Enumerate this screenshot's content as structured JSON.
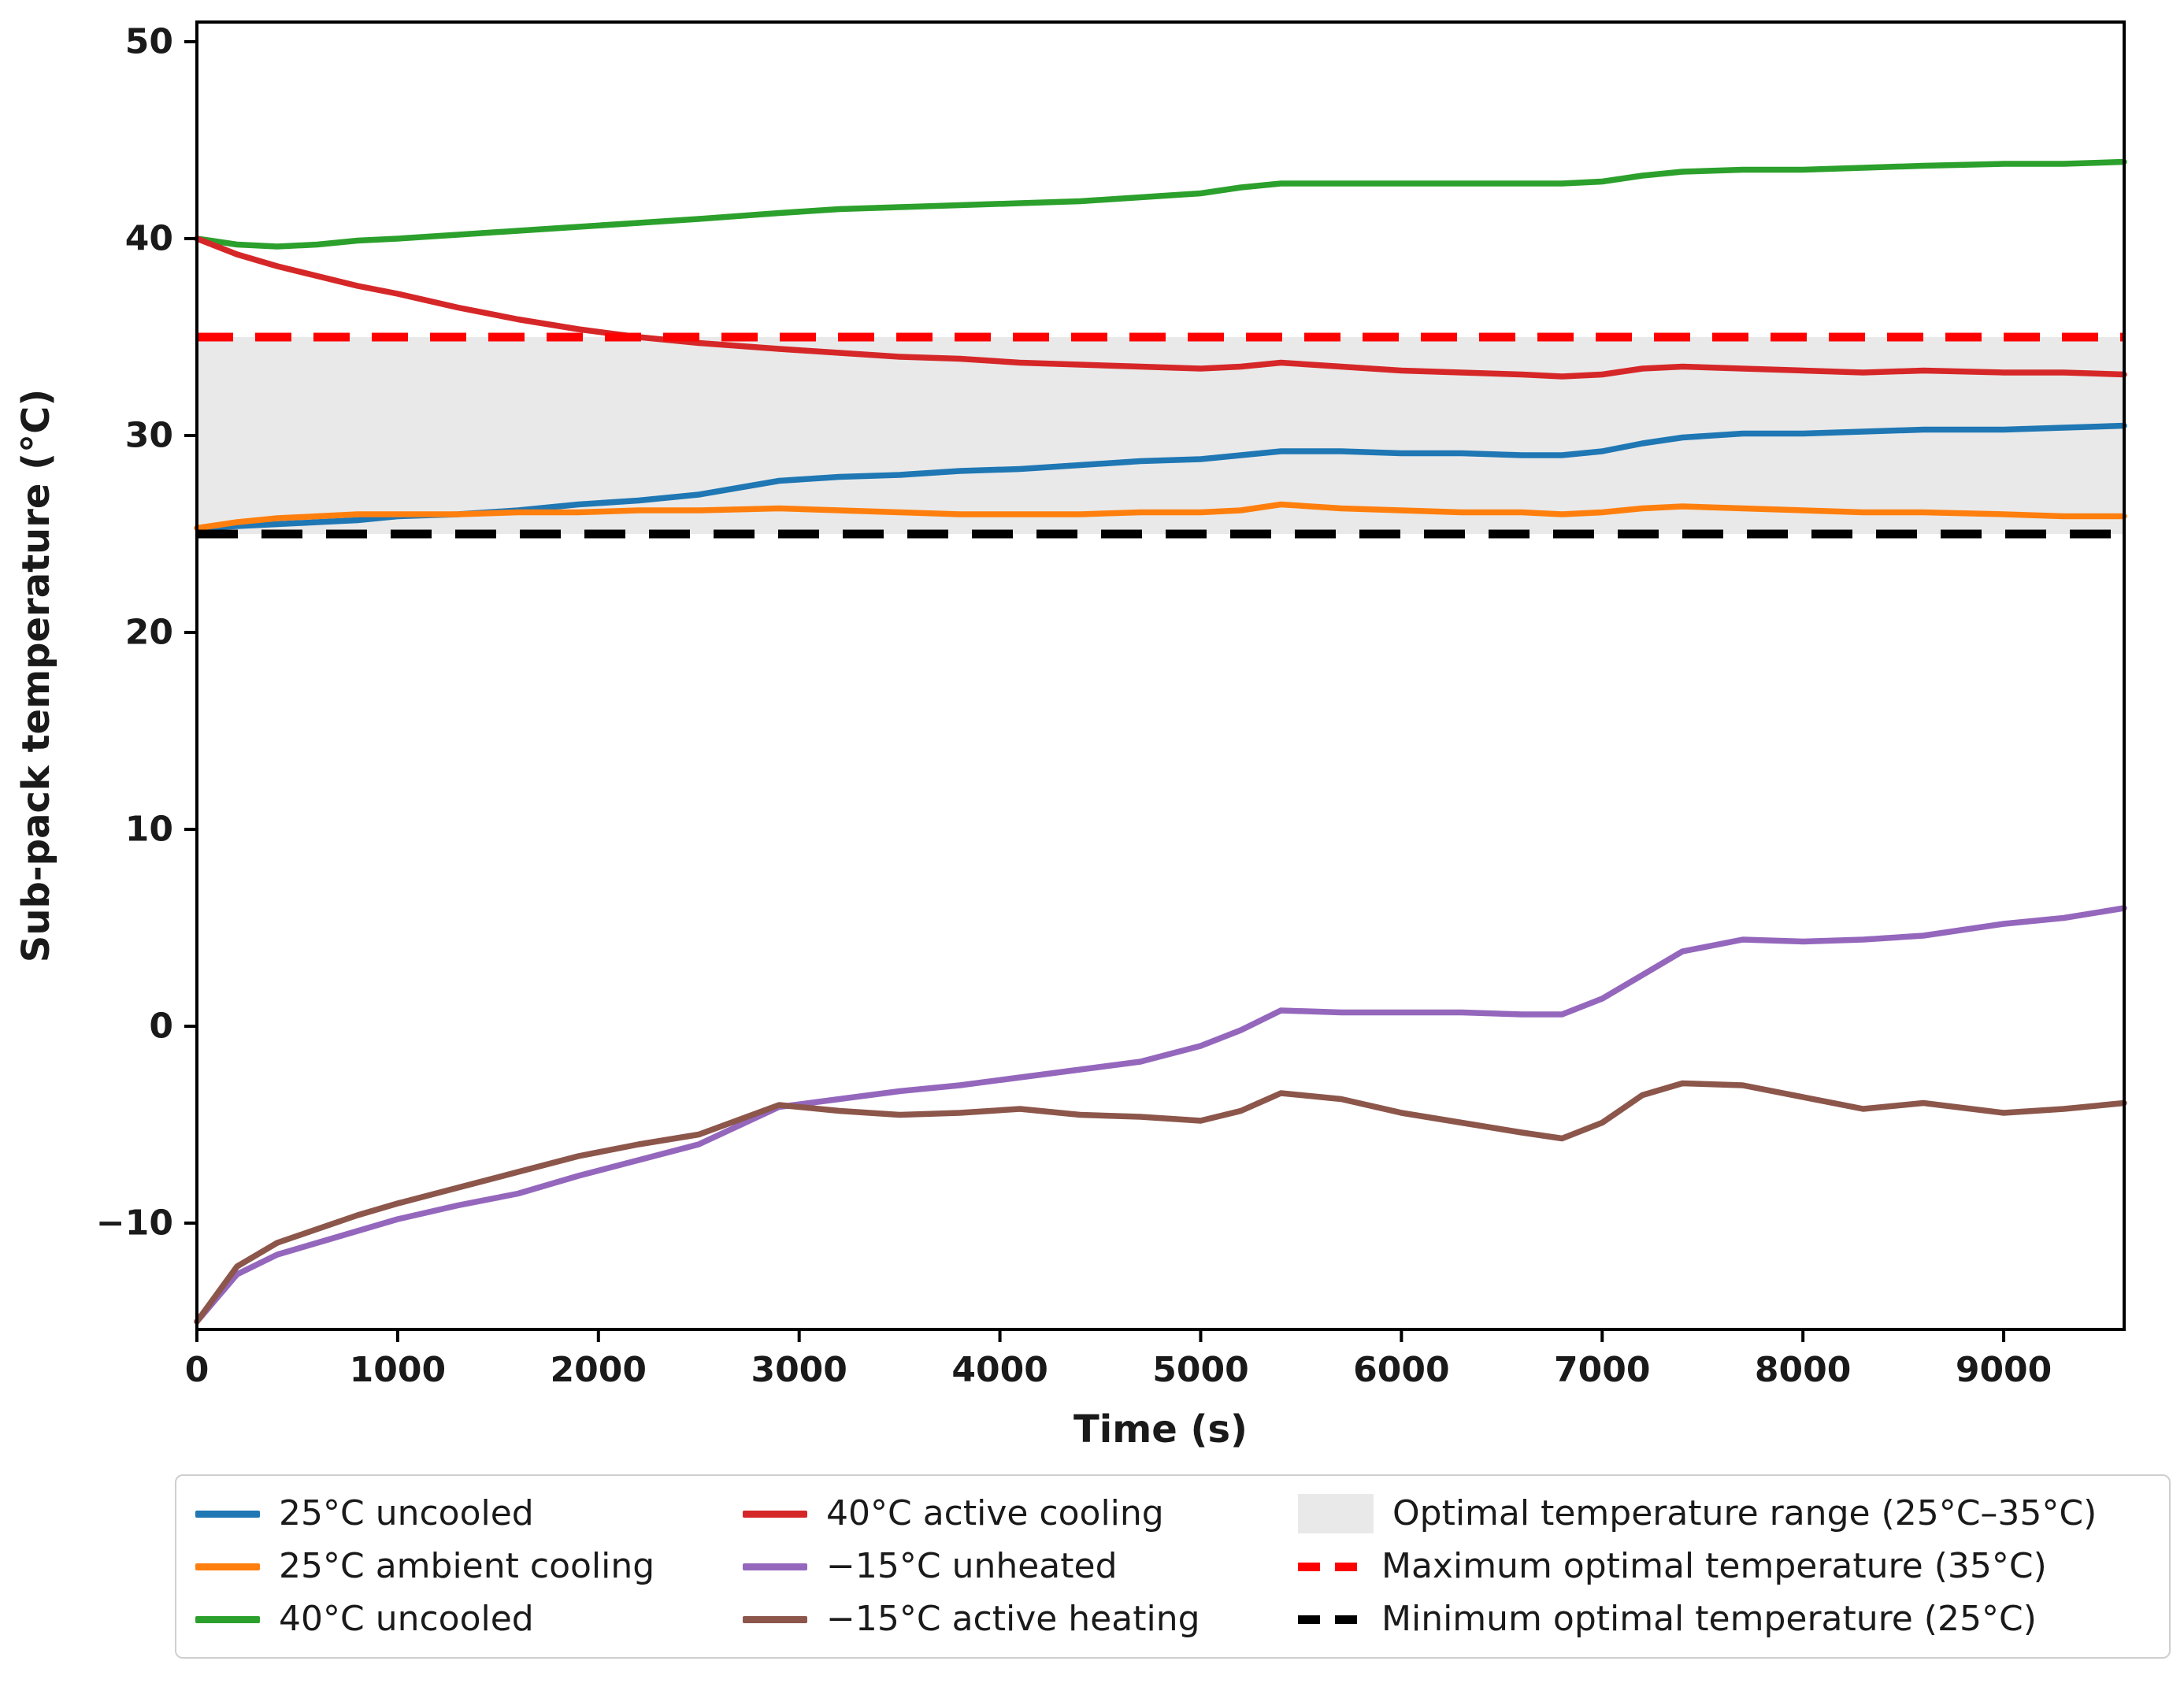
{
  "chart_data": {
    "type": "line",
    "title": "",
    "xlabel": "Time (s)",
    "ylabel": "Sub-pack temperature (°C)",
    "xlim": [
      0,
      9600
    ],
    "ylim": [
      -15.4,
      51.0
    ],
    "grid": false,
    "legend_position": "below",
    "xticks": [
      {
        "value": 0,
        "label": "0"
      },
      {
        "value": 1000,
        "label": "1000"
      },
      {
        "value": 2000,
        "label": "2000"
      },
      {
        "value": 3000,
        "label": "3000"
      },
      {
        "value": 4000,
        "label": "4000"
      },
      {
        "value": 5000,
        "label": "5000"
      },
      {
        "value": 6000,
        "label": "6000"
      },
      {
        "value": 7000,
        "label": "7000"
      },
      {
        "value": 8000,
        "label": "8000"
      },
      {
        "value": 9000,
        "label": "9000"
      }
    ],
    "yticks": [
      {
        "value": 50,
        "label": "50"
      },
      {
        "value": 40,
        "label": "40"
      },
      {
        "value": 30,
        "label": "30"
      },
      {
        "value": 20,
        "label": "20"
      },
      {
        "value": 10,
        "label": "10"
      },
      {
        "value": 0,
        "label": "0"
      },
      {
        "value": -10,
        "label": "−10"
      }
    ],
    "x": [
      0,
      200,
      400,
      600,
      800,
      1000,
      1300,
      1600,
      1900,
      2200,
      2500,
      2900,
      3200,
      3500,
      3800,
      4100,
      4400,
      4700,
      5000,
      5200,
      5400,
      5700,
      6000,
      6300,
      6600,
      6800,
      7000,
      7200,
      7400,
      7700,
      8000,
      8300,
      8600,
      9000,
      9300,
      9600
    ],
    "series": [
      {
        "name": "25°C uncooled",
        "color": "#1f77b4",
        "values": [
          25.3,
          25.4,
          25.5,
          25.6,
          25.7,
          25.9,
          26.0,
          26.2,
          26.5,
          26.7,
          27.0,
          27.7,
          27.9,
          28.0,
          28.2,
          28.3,
          28.5,
          28.7,
          28.8,
          29.0,
          29.2,
          29.2,
          29.1,
          29.1,
          29.0,
          29.0,
          29.2,
          29.6,
          29.9,
          30.1,
          30.1,
          30.2,
          30.3,
          30.3,
          30.4,
          30.5
        ]
      },
      {
        "name": "25°C ambient cooling",
        "color": "#ff7f0e",
        "values": [
          25.3,
          25.6,
          25.8,
          25.9,
          26.0,
          26.0,
          26.0,
          26.1,
          26.1,
          26.2,
          26.2,
          26.3,
          26.2,
          26.1,
          26.0,
          26.0,
          26.0,
          26.1,
          26.1,
          26.2,
          26.5,
          26.3,
          26.2,
          26.1,
          26.1,
          26.0,
          26.1,
          26.3,
          26.4,
          26.3,
          26.2,
          26.1,
          26.1,
          26.0,
          25.9,
          25.9
        ]
      },
      {
        "name": "40°C uncooled",
        "color": "#2ca02c",
        "values": [
          40.0,
          39.7,
          39.6,
          39.7,
          39.9,
          40.0,
          40.2,
          40.4,
          40.6,
          40.8,
          41.0,
          41.3,
          41.5,
          41.6,
          41.7,
          41.8,
          41.9,
          42.1,
          42.3,
          42.6,
          42.8,
          42.8,
          42.8,
          42.8,
          42.8,
          42.8,
          42.9,
          43.2,
          43.4,
          43.5,
          43.5,
          43.6,
          43.7,
          43.8,
          43.8,
          43.9
        ]
      },
      {
        "name": "40°C active cooling",
        "color": "#d62728",
        "values": [
          40.0,
          39.2,
          38.6,
          38.1,
          37.6,
          37.2,
          36.5,
          35.9,
          35.4,
          35.0,
          34.7,
          34.4,
          34.2,
          34.0,
          33.9,
          33.7,
          33.6,
          33.5,
          33.4,
          33.5,
          33.7,
          33.5,
          33.3,
          33.2,
          33.1,
          33.0,
          33.1,
          33.4,
          33.5,
          33.4,
          33.3,
          33.2,
          33.3,
          33.2,
          33.2,
          33.1
        ]
      },
      {
        "name": "−15°C unheated",
        "color": "#9467bd",
        "values": [
          -15.0,
          -12.6,
          -11.6,
          -11.0,
          -10.4,
          -9.8,
          -9.1,
          -8.5,
          -7.6,
          -6.8,
          -6.0,
          -4.1,
          -3.7,
          -3.3,
          -3.0,
          -2.6,
          -2.2,
          -1.8,
          -1.0,
          -0.2,
          0.8,
          0.7,
          0.7,
          0.7,
          0.6,
          0.6,
          1.4,
          2.6,
          3.8,
          4.4,
          4.3,
          4.4,
          4.6,
          5.2,
          5.5,
          6.0
        ]
      },
      {
        "name": "−15°C active heating",
        "color": "#8c564b",
        "values": [
          -15.0,
          -12.2,
          -11.0,
          -10.3,
          -9.6,
          -9.0,
          -8.2,
          -7.4,
          -6.6,
          -6.0,
          -5.5,
          -4.0,
          -4.3,
          -4.5,
          -4.4,
          -4.2,
          -4.5,
          -4.6,
          -4.8,
          -4.3,
          -3.4,
          -3.7,
          -4.4,
          -4.9,
          -5.4,
          -5.7,
          -4.9,
          -3.5,
          -2.9,
          -3.0,
          -3.6,
          -4.2,
          -3.9,
          -4.4,
          -4.2,
          -3.9
        ]
      }
    ],
    "band": {
      "label": "Optimal temperature range (25°C–35°C)",
      "from": 25,
      "to": 35,
      "color": "#e9e9e9"
    },
    "hlines": [
      {
        "label": "Maximum optimal temperature (35°C)",
        "y": 35,
        "color": "#ff0000",
        "style": "dashed"
      },
      {
        "label": "Minimum optimal temperature (25°C)",
        "y": 25,
        "color": "#000000",
        "style": "dashed"
      }
    ]
  }
}
